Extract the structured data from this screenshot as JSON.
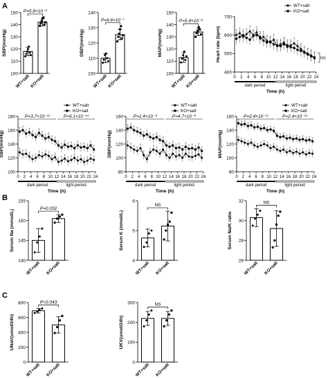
{
  "panel_letters": [
    "A",
    "B",
    "C"
  ],
  "group_labels": [
    "WT+salt",
    "KO+salt"
  ],
  "chart_data": [
    {
      "id": "sbp-bar",
      "type": "bar",
      "panel": "A",
      "title": "",
      "xlabel": "",
      "ylabel": "SBP(mmHg)",
      "ylim": [
        100,
        150
      ],
      "yticks": [
        100,
        110,
        120,
        130,
        140,
        150
      ],
      "categories": [
        "WT+salt",
        "KO+salt"
      ],
      "values": [
        118,
        142
      ],
      "errors": [
        3.5,
        3
      ],
      "points": [
        [
          114,
          116,
          118,
          120,
          122,
          117,
          115
        ],
        [
          139,
          141,
          143,
          145,
          146,
          140,
          142
        ]
      ],
      "annotation": "P=5.8×10⁻⁸"
    },
    {
      "id": "dbp-bar",
      "type": "bar",
      "panel": "A",
      "title": "",
      "xlabel": "",
      "ylabel": "DBP(mmHg)",
      "ylim": [
        100,
        140
      ],
      "yticks": [
        100,
        110,
        120,
        130,
        140
      ],
      "categories": [
        "WT+salt",
        "KO+salt"
      ],
      "values": [
        110,
        125.5
      ],
      "errors": [
        3,
        3.5
      ],
      "points": [
        [
          107,
          109,
          112,
          113,
          110,
          108
        ],
        [
          121,
          124,
          126,
          129,
          131,
          123,
          125
        ]
      ],
      "annotation": "P=6.6×10⁻⁷"
    },
    {
      "id": "map-bar",
      "type": "bar",
      "panel": "A",
      "title": "",
      "xlabel": "",
      "ylabel": "MAP(mmHg)",
      "ylim": [
        100,
        150
      ],
      "yticks": [
        100,
        110,
        120,
        130,
        140,
        150
      ],
      "categories": [
        "WT+salt",
        "KO+salt"
      ],
      "values": [
        113,
        134
      ],
      "errors": [
        4,
        3
      ],
      "points": [
        [
          109,
          112,
          115,
          118,
          111,
          114
        ],
        [
          130,
          133,
          135,
          138,
          136,
          132
        ]
      ],
      "annotation": "P=5.4×10⁻⁸"
    },
    {
      "id": "hr-line",
      "type": "line",
      "panel": "A",
      "title": "",
      "xlabel": "Time (h)",
      "ylabel": "Heart rate (bpm)",
      "ylim": [
        400,
        700
      ],
      "yticks": [
        400,
        500,
        600,
        700
      ],
      "xlim": [
        0,
        24
      ],
      "xticks": [
        0,
        2,
        4,
        6,
        8,
        10,
        12,
        14,
        16,
        18,
        20,
        22,
        24
      ],
      "period_labels": [
        "dark period",
        "light period"
      ],
      "period_split": 12,
      "legend": "top-right",
      "bracket_label": "NS",
      "x": [
        0.5,
        1.5,
        2.5,
        3.5,
        4.5,
        5.5,
        6.5,
        7.5,
        8.5,
        9.5,
        10.5,
        11.5,
        12.5,
        13.5,
        14.5,
        15.5,
        16.5,
        17.5,
        18.5,
        19.5,
        20.5,
        21.5,
        22.5,
        23.5
      ],
      "series": [
        {
          "name": "WT+salt",
          "marker": "circle",
          "values": [
            600,
            610,
            590,
            605,
            620,
            600,
            615,
            580,
            590,
            570,
            560,
            575,
            540,
            550,
            560,
            535,
            545,
            555,
            540,
            525,
            510,
            500,
            490,
            480
          ],
          "errors": [
            30,
            30,
            30,
            30,
            30,
            30,
            30,
            30,
            30,
            30,
            30,
            30,
            30,
            30,
            30,
            30,
            30,
            30,
            30,
            30,
            30,
            30,
            30,
            30
          ]
        },
        {
          "name": "KO+salt",
          "marker": "square",
          "values": [
            580,
            590,
            600,
            585,
            575,
            595,
            600,
            590,
            570,
            560,
            565,
            550,
            545,
            540,
            550,
            545,
            535,
            530,
            520,
            515,
            505,
            495,
            485,
            475
          ],
          "errors": [
            30,
            30,
            30,
            30,
            30,
            30,
            30,
            30,
            30,
            30,
            30,
            30,
            30,
            30,
            30,
            30,
            30,
            30,
            30,
            30,
            30,
            30,
            30,
            30
          ]
        }
      ]
    },
    {
      "id": "sbp-line",
      "type": "line",
      "panel": "A",
      "title": "",
      "xlabel": "Time (h)",
      "ylabel": "SBP(mmHg)",
      "ylim": [
        100,
        180
      ],
      "yticks": [
        100,
        120,
        140,
        160,
        180
      ],
      "xlim": [
        0,
        24
      ],
      "xticks": [
        0,
        2,
        4,
        6,
        8,
        10,
        12,
        14,
        16,
        18,
        20,
        22,
        24
      ],
      "period_labels": [
        "dark period",
        "light period"
      ],
      "period_split": 12,
      "legend": "top-right",
      "p_values": [
        "P=3.7×10⁻¹²",
        "P=9.1×10⁻¹⁴"
      ],
      "x": [
        0.5,
        1.5,
        2.5,
        3.5,
        4.5,
        5.5,
        6.5,
        7.5,
        8.5,
        9.5,
        10.5,
        11.5,
        12.5,
        13.5,
        14.5,
        15.5,
        16.5,
        17.5,
        18.5,
        19.5,
        20.5,
        21.5,
        22.5,
        23.5
      ],
      "series": [
        {
          "name": "WT+salt",
          "marker": "circle",
          "values": [
            128,
            125,
            126,
            122,
            118,
            120,
            124,
            122,
            125,
            123,
            118,
            121,
            114,
            116,
            119,
            115,
            117,
            120,
            116,
            118,
            114,
            116,
            119,
            117
          ],
          "errors": [
            6,
            6,
            6,
            6,
            6,
            6,
            6,
            6,
            6,
            6,
            6,
            6,
            6,
            6,
            6,
            6,
            6,
            6,
            6,
            6,
            6,
            6,
            6,
            6
          ]
        },
        {
          "name": "KO+salt",
          "marker": "square",
          "values": [
            158,
            160,
            155,
            157,
            153,
            150,
            156,
            152,
            148,
            150,
            146,
            144,
            138,
            135,
            139,
            136,
            137,
            134,
            138,
            135,
            136,
            134,
            138,
            132
          ],
          "errors": [
            6,
            6,
            6,
            6,
            6,
            6,
            6,
            6,
            6,
            6,
            6,
            6,
            6,
            6,
            6,
            6,
            6,
            6,
            6,
            6,
            6,
            6,
            6,
            6
          ]
        }
      ]
    },
    {
      "id": "dbp-line",
      "type": "line",
      "panel": "A",
      "title": "",
      "xlabel": "Time (h)",
      "ylabel": "DBP(mmHg)",
      "ylim": [
        80,
        160
      ],
      "yticks": [
        80,
        100,
        120,
        140,
        160
      ],
      "xlim": [
        0,
        24
      ],
      "xticks": [
        0,
        2,
        4,
        6,
        8,
        10,
        12,
        14,
        16,
        18,
        20,
        22,
        24
      ],
      "period_labels": [
        "dark period",
        "light period"
      ],
      "period_split": 12,
      "legend": "top-right",
      "p_values": [
        "P=1.4×10⁻⁹",
        "P=4.7×10⁻⁸"
      ],
      "x": [
        0.5,
        1.5,
        2.5,
        3.5,
        4.5,
        5.5,
        6.5,
        7.5,
        8.5,
        9.5,
        10.5,
        11.5,
        12.5,
        13.5,
        14.5,
        15.5,
        16.5,
        17.5,
        18.5,
        19.5,
        20.5,
        21.5,
        22.5,
        23.5
      ],
      "series": [
        {
          "name": "WT+salt",
          "marker": "circle",
          "values": [
            118,
            115,
            112,
            110,
            114,
            104,
            98,
            108,
            112,
            110,
            106,
            112,
            104,
            100,
            106,
            102,
            104,
            100,
            106,
            102,
            101,
            103,
            105,
            100
          ],
          "errors": [
            6,
            6,
            6,
            6,
            6,
            6,
            6,
            6,
            6,
            6,
            6,
            6,
            6,
            6,
            6,
            6,
            6,
            6,
            6,
            6,
            6,
            6,
            6,
            6
          ]
        },
        {
          "name": "KO+salt",
          "marker": "square",
          "values": [
            142,
            144,
            140,
            138,
            136,
            132,
            134,
            130,
            128,
            130,
            126,
            124,
            118,
            116,
            118,
            114,
            115,
            112,
            116,
            113,
            114,
            112,
            115,
            110
          ],
          "errors": [
            6,
            6,
            6,
            6,
            6,
            6,
            6,
            6,
            6,
            6,
            6,
            6,
            6,
            6,
            6,
            6,
            6,
            6,
            6,
            6,
            6,
            6,
            6,
            6
          ]
        }
      ]
    },
    {
      "id": "map-line",
      "type": "line",
      "panel": "A",
      "title": "",
      "xlabel": "Time (h)",
      "ylabel": "MAP(mmHg)",
      "ylim": [
        80,
        160
      ],
      "yticks": [
        80,
        100,
        120,
        140,
        160
      ],
      "xlim": [
        0,
        24
      ],
      "xticks": [
        0,
        2,
        4,
        6,
        8,
        10,
        12,
        14,
        16,
        18,
        20,
        22,
        24
      ],
      "period_labels": [
        "dark period",
        "light period"
      ],
      "period_split": 12,
      "legend": "top-right",
      "p_values": [
        "P=2.4×10⁻¹¹",
        "P=2.4×10⁻¹²"
      ],
      "x": [
        0.5,
        1.5,
        2.5,
        3.5,
        4.5,
        5.5,
        6.5,
        7.5,
        8.5,
        9.5,
        10.5,
        11.5,
        12.5,
        13.5,
        14.5,
        15.5,
        16.5,
        17.5,
        18.5,
        19.5,
        20.5,
        21.5,
        22.5,
        23.5
      ],
      "series": [
        {
          "name": "WT+salt",
          "marker": "circle",
          "values": [
            126,
            124,
            122,
            120,
            122,
            118,
            116,
            118,
            120,
            118,
            114,
            116,
            112,
            110,
            112,
            108,
            110,
            107,
            109,
            106,
            108,
            105,
            107,
            106
          ],
          "errors": [
            5,
            5,
            5,
            5,
            5,
            5,
            5,
            5,
            5,
            5,
            5,
            5,
            5,
            5,
            5,
            5,
            5,
            5,
            5,
            5,
            5,
            5,
            5,
            5
          ]
        },
        {
          "name": "KO+salt",
          "marker": "square",
          "values": [
            150,
            148,
            149,
            146,
            147,
            144,
            145,
            142,
            143,
            140,
            141,
            139,
            132,
            130,
            131,
            128,
            129,
            127,
            128,
            126,
            127,
            125,
            126,
            124
          ],
          "errors": [
            5,
            5,
            5,
            5,
            5,
            5,
            5,
            5,
            5,
            5,
            5,
            5,
            5,
            5,
            5,
            5,
            5,
            5,
            5,
            5,
            5,
            5,
            5,
            5
          ]
        }
      ]
    },
    {
      "id": "na-bar",
      "type": "bar",
      "panel": "B",
      "title": "",
      "xlabel": "",
      "ylabel": "Serum Na (mmol/L)",
      "ylim": [
        140,
        155
      ],
      "yticks": [
        140,
        145,
        150,
        155
      ],
      "categories": [
        "WT+salt",
        "KO+salt"
      ],
      "values": [
        145,
        150.5
      ],
      "errors": [
        3,
        1
      ],
      "points": [
        [
          142,
          144.5,
          146,
          148
        ],
        [
          149.5,
          150.5,
          151,
          151.5
        ]
      ],
      "annotation": "P=0.032"
    },
    {
      "id": "k-bar",
      "type": "bar",
      "panel": "B",
      "title": "",
      "xlabel": "",
      "ylabel": "Serum K (mmol/L)",
      "ylim": [
        4,
        6
      ],
      "yticks": [
        4,
        5,
        6
      ],
      "categories": [
        "WT+salt",
        "KO+salt"
      ],
      "values": [
        4.75,
        5.15
      ],
      "errors": [
        0.3,
        0.5
      ],
      "points": [
        [
          4.45,
          4.6,
          4.9,
          5.0
        ],
        [
          4.7,
          5.0,
          5.2,
          5.3,
          5.6
        ]
      ],
      "annotation": "NS"
    },
    {
      "id": "nak-bar",
      "type": "bar",
      "panel": "B",
      "title": "",
      "xlabel": "",
      "ylabel": "Serum Na/K ratio",
      "ylim": [
        26,
        32
      ],
      "yticks": [
        26,
        28,
        30,
        32
      ],
      "categories": [
        "WT+salt",
        "KO+salt"
      ],
      "values": [
        30.3,
        29.2
      ],
      "errors": [
        0.9,
        1.8
      ],
      "points": [
        [
          29.5,
          30.2,
          30.6,
          31.0
        ],
        [
          27.3,
          28.0,
          29.6,
          30.5,
          30.9
        ]
      ],
      "annotation": "NS"
    },
    {
      "id": "unav-bar",
      "type": "bar",
      "panel": "C",
      "title": "",
      "xlabel": "",
      "ylabel": "UNaV(umol/24h)",
      "ylim": [
        0,
        800
      ],
      "yticks": [
        0,
        200,
        400,
        600,
        800
      ],
      "categories": [
        "WT+salt",
        "KO+salt"
      ],
      "values": [
        690,
        500
      ],
      "errors": [
        30,
        110
      ],
      "points": [
        [
          660,
          680,
          700,
          720
        ],
        [
          390,
          470,
          560,
          620
        ]
      ],
      "annotation": "P=0.043"
    },
    {
      "id": "ukv-bar",
      "type": "bar",
      "panel": "C",
      "title": "",
      "xlabel": "",
      "ylabel": "UKV(umol/24h)",
      "ylim": [
        0,
        300
      ],
      "yticks": [
        0,
        100,
        200,
        300
      ],
      "categories": [
        "WT+salt",
        "KO+salt"
      ],
      "values": [
        220,
        220
      ],
      "errors": [
        35,
        35
      ],
      "points": [
        [
          180,
          210,
          240,
          260
        ],
        [
          180,
          210,
          240,
          260
        ]
      ],
      "annotation": "NS"
    }
  ]
}
